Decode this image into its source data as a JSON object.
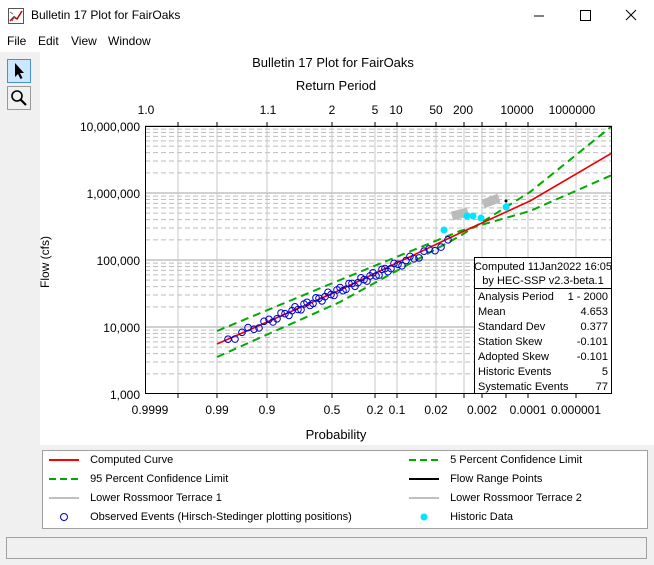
{
  "window": {
    "title": "Bulletin 17 Plot for FairOaks"
  },
  "menu": [
    "File",
    "Edit",
    "View",
    "Window"
  ],
  "tools": [
    {
      "icon": "arrow-pointer-icon"
    },
    {
      "icon": "magnifier-icon"
    }
  ],
  "plot": {
    "title": "Bulletin 17 Plot for FairOaks",
    "top_axis_label": "Return Period",
    "bottom_axis_label": "Probability",
    "y_axis_label": "Flow (cfs)",
    "y_ticks": [
      "10,000,000",
      "1,000,000",
      "100,000",
      "10,000",
      "1,000"
    ],
    "return_period_ticks": [
      "1.0",
      "1.1",
      "2",
      "5",
      "10",
      "50",
      "200",
      "10000",
      "1000000"
    ],
    "probability_ticks": [
      "0.9999",
      "0.99",
      "0.9",
      "0.5",
      "0.2",
      "0.1",
      "0.02",
      "0.002",
      "0.0001",
      "0.000001"
    ],
    "stats_box": {
      "header1": "Computed 11Jan2022 16:05",
      "header2": "by HEC-SSP v2.3-beta.1",
      "rows": [
        {
          "label": "Analysis Period",
          "value": "1 - 2000"
        },
        {
          "label": "Mean",
          "value": "4.653"
        },
        {
          "label": "Standard Dev",
          "value": "0.377"
        },
        {
          "label": "Station Skew",
          "value": "-0.101"
        },
        {
          "label": "Adopted Skew",
          "value": "-0.101"
        },
        {
          "label": "Historic Events",
          "value": "5"
        },
        {
          "label": "Systematic Events",
          "value": "77"
        }
      ]
    }
  },
  "legend": [
    {
      "label": "Computed Curve",
      "color": "#ff0000",
      "style": "solid"
    },
    {
      "label": "5 Percent Confidence Limit",
      "color": "#00aa00",
      "style": "dashed"
    },
    {
      "label": "95 Percent Confidence Limit",
      "color": "#00aa00",
      "style": "dashed"
    },
    {
      "label": "Flow Range Points",
      "color": "#000000",
      "style": "solid"
    },
    {
      "label": "Lower Rossmoor Terrace 1",
      "color": "#c0c0c0",
      "style": "solid"
    },
    {
      "label": "Lower Rossmoor Terrace 2",
      "color": "#c0c0c0",
      "style": "solid"
    },
    {
      "label": "Observed Events (Hirsch-Stedinger plotting positions)",
      "color": "#0000cc",
      "style": "circle"
    },
    {
      "label": "Historic Data",
      "color": "#00e5ff",
      "style": "dot"
    }
  ]
}
